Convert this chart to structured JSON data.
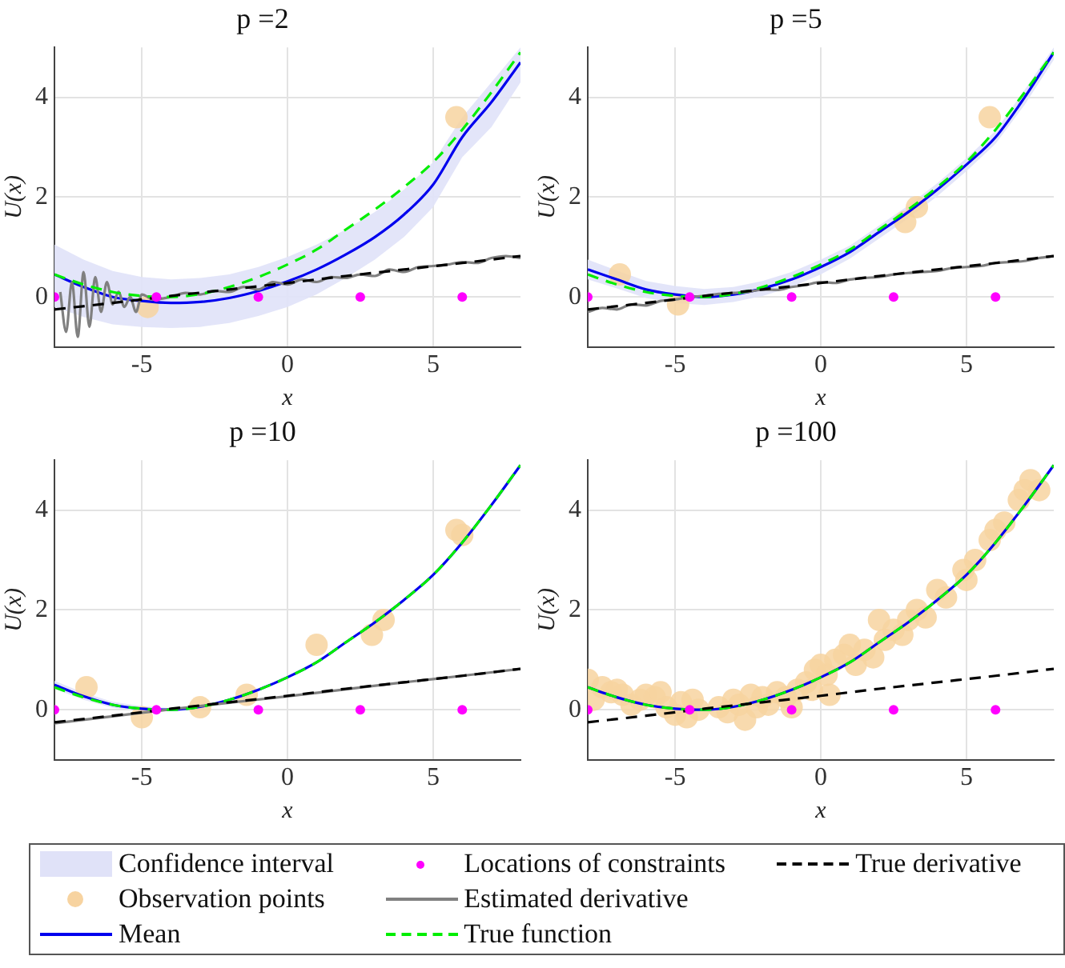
{
  "chart_data": [
    {
      "type": "line",
      "title": "p =2",
      "xlabel": "x",
      "ylabel": "U(x)",
      "xlim": [
        -8,
        8
      ],
      "xticks": [
        -5,
        0,
        5
      ],
      "ylim": [
        -1,
        5
      ],
      "yticks": [
        0,
        2,
        4
      ],
      "grid": true,
      "legend": "bottom",
      "series": [
        {
          "name": "Confidence interval",
          "type": "area",
          "color": "#e0e2f8",
          "x": [
            -8,
            -7,
            -6,
            -5,
            -4,
            -3,
            -2,
            -1,
            0,
            1,
            2,
            3,
            4,
            5,
            6,
            7,
            8
          ],
          "values": [
            null,
            null,
            null,
            null,
            null,
            null,
            null,
            null,
            null,
            null,
            null,
            null,
            null,
            null,
            null,
            null,
            null
          ],
          "lower": [
            -0.2,
            -0.4,
            -0.55,
            -0.6,
            -0.62,
            -0.6,
            -0.52,
            -0.38,
            -0.2,
            0.05,
            0.38,
            0.75,
            1.2,
            1.8,
            2.8,
            3.4,
            4.3
          ],
          "upper": [
            1.05,
            0.75,
            0.52,
            0.4,
            0.35,
            0.38,
            0.45,
            0.6,
            0.8,
            1.05,
            1.35,
            1.7,
            2.15,
            2.7,
            3.6,
            4.3,
            5.0
          ]
        },
        {
          "name": "Observation points",
          "type": "scatter",
          "marker": "circle",
          "color": "#f7d3a0",
          "x": [
            -4.8,
            5.8
          ],
          "values": [
            -0.2,
            3.6
          ]
        },
        {
          "name": "Mean",
          "type": "line",
          "color": "#0000ee",
          "x": [
            -8,
            -7,
            -6,
            -5,
            -4,
            -3,
            -2,
            -1,
            0,
            1,
            2,
            3,
            4,
            5,
            6,
            7,
            8
          ],
          "values": [
            0.45,
            0.2,
            0.0,
            -0.08,
            -0.12,
            -0.1,
            -0.02,
            0.12,
            0.31,
            0.55,
            0.85,
            1.2,
            1.65,
            2.25,
            3.2,
            3.9,
            4.7
          ]
        },
        {
          "name": "Locations of constraints",
          "type": "scatter",
          "marker": "circle",
          "color": "#ff00ff",
          "x": [
            -8,
            -4.5,
            -1,
            2.5,
            6
          ],
          "values": [
            0,
            0,
            0,
            0,
            0
          ]
        },
        {
          "name": "Estimated derivative",
          "type": "line",
          "color": "#808080",
          "x": [
            -7.8,
            -7.6,
            -7.4,
            -7.2,
            -7.0,
            -6.8,
            -6.6,
            -6.4,
            -6.2,
            -6.0,
            -5.8,
            -5.6,
            -5.4,
            -5.2,
            -5.0,
            -4.6,
            -4,
            -3.5,
            -3,
            -2.5,
            -2,
            -1.5,
            -1,
            -0.5,
            0,
            0.5,
            1,
            1.5,
            2,
            2.5,
            3,
            3.5,
            4,
            4.5,
            5,
            5.5,
            6,
            6.5,
            7,
            7.5,
            8
          ],
          "values": [
            0.1,
            -0.7,
            0.3,
            -0.8,
            0.5,
            -0.6,
            0.4,
            -0.3,
            0.3,
            -0.15,
            0.1,
            -0.2,
            0.0,
            -0.3,
            0.05,
            -0.05,
            0.0,
            0.08,
            0.05,
            0.12,
            0.1,
            0.2,
            0.15,
            0.3,
            0.25,
            0.35,
            0.3,
            0.4,
            0.38,
            0.45,
            0.42,
            0.55,
            0.5,
            0.6,
            0.62,
            0.65,
            0.7,
            0.68,
            0.78,
            0.82,
            0.78
          ]
        },
        {
          "name": "True function",
          "type": "line",
          "line_style": "dashed",
          "color": "#00ee00",
          "x": [
            -8,
            -7,
            -6,
            -5,
            -4,
            -3,
            -2,
            -1,
            0,
            1,
            2,
            3,
            4,
            5,
            6,
            7,
            8
          ],
          "values": [
            0.45,
            0.25,
            0.1,
            0.02,
            0.0,
            0.06,
            0.2,
            0.4,
            0.65,
            0.95,
            1.35,
            1.75,
            2.2,
            2.7,
            3.35,
            4.1,
            4.9
          ]
        },
        {
          "name": "True derivative",
          "type": "line",
          "line_style": "dashed",
          "color": "#000000",
          "x": [
            -8,
            -6,
            -4,
            -2,
            0,
            2,
            4,
            6,
            8
          ],
          "values": [
            -0.25,
            -0.12,
            0.02,
            0.15,
            0.28,
            0.42,
            0.55,
            0.68,
            0.82
          ]
        }
      ]
    },
    {
      "type": "line",
      "title": "p =5",
      "xlabel": "x",
      "ylabel": "U(x)",
      "xlim": [
        -8,
        8
      ],
      "xticks": [
        -5,
        0,
        5
      ],
      "ylim": [
        -1,
        5
      ],
      "yticks": [
        0,
        2,
        4
      ],
      "grid": true,
      "legend": "bottom",
      "series": [
        {
          "type": "area",
          "color": "#e0e2f8",
          "x": [
            -8,
            -7,
            -6,
            -5,
            -4,
            -3,
            -2,
            -1,
            0,
            1,
            2,
            3,
            4,
            5,
            6,
            7,
            8
          ],
          "values": [
            null,
            null,
            null,
            null,
            null,
            null,
            null,
            null,
            null,
            null,
            null,
            null,
            null,
            null,
            null,
            null,
            null
          ],
          "lower": [
            0.35,
            0.17,
            -0.02,
            -0.12,
            -0.16,
            -0.1,
            0.02,
            0.2,
            0.45,
            0.77,
            1.17,
            1.57,
            2.02,
            2.52,
            3.07,
            3.85,
            4.75
          ],
          "upper": [
            0.75,
            0.53,
            0.32,
            0.22,
            0.16,
            0.2,
            0.32,
            0.5,
            0.75,
            1.03,
            1.43,
            1.83,
            2.28,
            2.78,
            3.33,
            4.15,
            5.0
          ]
        },
        {
          "type": "scatter",
          "marker": "circle",
          "color": "#f7d3a0",
          "x": [
            -6.9,
            -4.9,
            2.9,
            3.3,
            5.8
          ],
          "values": [
            0.45,
            -0.15,
            1.5,
            1.8,
            3.6
          ]
        },
        {
          "type": "line",
          "color": "#0000ee",
          "x": [
            -8,
            -7,
            -6,
            -5,
            -4,
            -3,
            -2,
            -1,
            0,
            1,
            2,
            3,
            4,
            5,
            6,
            7,
            8
          ],
          "values": [
            0.55,
            0.35,
            0.15,
            0.05,
            0.0,
            0.05,
            0.17,
            0.35,
            0.6,
            0.9,
            1.3,
            1.7,
            2.15,
            2.65,
            3.2,
            4.0,
            4.9
          ]
        },
        {
          "type": "scatter",
          "marker": "circle",
          "color": "#ff00ff",
          "x": [
            -8,
            -4.5,
            -1,
            2.5,
            6
          ],
          "values": [
            0,
            0,
            0,
            0,
            0
          ]
        },
        {
          "type": "line",
          "color": "#808080",
          "x": [
            -8,
            -7.5,
            -7,
            -6.5,
            -6,
            -5.5,
            -5,
            -4.5,
            -4,
            -3.5,
            -3,
            -2.5,
            -2,
            -1.5,
            -1,
            -0.5,
            0,
            0.5,
            1,
            1.5,
            2,
            2.5,
            3,
            3.5,
            4,
            4.5,
            5,
            5.5,
            6,
            6.5,
            7,
            7.5,
            8
          ],
          "values": [
            -0.3,
            -0.22,
            -0.25,
            -0.15,
            -0.17,
            -0.08,
            -0.05,
            0.0,
            0.02,
            0.06,
            0.08,
            0.1,
            0.15,
            0.14,
            0.2,
            0.24,
            0.3,
            0.28,
            0.35,
            0.38,
            0.4,
            0.45,
            0.48,
            0.5,
            0.52,
            0.58,
            0.6,
            0.62,
            0.68,
            0.7,
            0.72,
            0.78,
            0.82
          ]
        },
        {
          "type": "line",
          "line_style": "dashed",
          "color": "#00ee00",
          "x": [
            -8,
            -7,
            -6,
            -5,
            -4,
            -3,
            -2,
            -1,
            0,
            1,
            2,
            3,
            4,
            5,
            6,
            7,
            8
          ],
          "values": [
            0.45,
            0.25,
            0.1,
            0.02,
            0.0,
            0.06,
            0.2,
            0.4,
            0.65,
            0.95,
            1.35,
            1.75,
            2.2,
            2.7,
            3.35,
            4.1,
            4.9
          ]
        },
        {
          "type": "line",
          "line_style": "dashed",
          "color": "#000000",
          "x": [
            -8,
            -6,
            -4,
            -2,
            0,
            2,
            4,
            6,
            8
          ],
          "values": [
            -0.25,
            -0.12,
            0.02,
            0.15,
            0.28,
            0.42,
            0.55,
            0.68,
            0.82
          ]
        }
      ]
    },
    {
      "type": "line",
      "title": "p =10",
      "xlabel": "x",
      "ylabel": "U(x)",
      "xlim": [
        -8,
        8
      ],
      "xticks": [
        -5,
        0,
        5
      ],
      "ylim": [
        -1,
        5
      ],
      "yticks": [
        0,
        2,
        4
      ],
      "grid": true,
      "legend": "bottom",
      "series": [
        {
          "type": "area",
          "color": "#e0e2f8",
          "x": [
            -8,
            -7,
            -6,
            -5,
            -4,
            -3,
            -2,
            -1,
            0,
            1,
            2,
            3,
            4,
            5,
            6,
            7,
            8
          ],
          "values": [
            null,
            null,
            null,
            null,
            null,
            null,
            null,
            null,
            null,
            null,
            null,
            null,
            null,
            null,
            null,
            null,
            null
          ],
          "lower": [
            0.42,
            0.2,
            0.04,
            -0.03,
            -0.03,
            0.03,
            0.18,
            0.38,
            0.63,
            0.93,
            1.33,
            1.73,
            2.18,
            2.68,
            3.33,
            4.08,
            4.88
          ],
          "upper": [
            0.58,
            0.34,
            0.16,
            0.07,
            0.03,
            0.09,
            0.22,
            0.42,
            0.67,
            0.97,
            1.37,
            1.77,
            2.22,
            2.72,
            3.37,
            4.12,
            4.92
          ]
        },
        {
          "type": "scatter",
          "marker": "circle",
          "color": "#f7d3a0",
          "x": [
            -6.9,
            -5,
            -3,
            -1.4,
            1,
            2.9,
            3.3,
            5.8,
            6
          ],
          "values": [
            0.45,
            -0.15,
            0.05,
            0.3,
            1.3,
            1.5,
            1.8,
            3.6,
            3.5
          ]
        },
        {
          "type": "line",
          "color": "#0000ee",
          "x": [
            -8,
            -7,
            -6,
            -5,
            -4,
            -3,
            -2,
            -1,
            0,
            1,
            2,
            3,
            4,
            5,
            6,
            7,
            8
          ],
          "values": [
            0.5,
            0.27,
            0.1,
            0.02,
            0.0,
            0.06,
            0.2,
            0.4,
            0.65,
            0.95,
            1.35,
            1.75,
            2.2,
            2.7,
            3.35,
            4.1,
            4.9
          ]
        },
        {
          "type": "scatter",
          "marker": "circle",
          "color": "#ff00ff",
          "x": [
            -8,
            -4.5,
            -1,
            2.5,
            6
          ],
          "values": [
            0,
            0,
            0,
            0,
            0
          ]
        },
        {
          "type": "line",
          "color": "#808080",
          "x": [
            -8,
            -6,
            -4,
            -2,
            0,
            2,
            4,
            6,
            8
          ],
          "values": [
            -0.27,
            -0.13,
            0.01,
            0.14,
            0.27,
            0.41,
            0.55,
            0.68,
            0.82
          ]
        },
        {
          "type": "line",
          "line_style": "dashed",
          "color": "#00ee00",
          "x": [
            -8,
            -7,
            -6,
            -5,
            -4,
            -3,
            -2,
            -1,
            0,
            1,
            2,
            3,
            4,
            5,
            6,
            7,
            8
          ],
          "values": [
            0.45,
            0.25,
            0.1,
            0.02,
            0.0,
            0.06,
            0.2,
            0.4,
            0.65,
            0.95,
            1.35,
            1.75,
            2.2,
            2.7,
            3.35,
            4.1,
            4.9
          ]
        },
        {
          "type": "line",
          "line_style": "dashed",
          "color": "#000000",
          "x": [
            -8,
            -6,
            -4,
            -2,
            0,
            2,
            4,
            6,
            8
          ],
          "values": [
            -0.25,
            -0.12,
            0.02,
            0.15,
            0.28,
            0.42,
            0.55,
            0.68,
            0.82
          ]
        }
      ]
    },
    {
      "type": "line",
      "title": "p =100",
      "xlabel": "x",
      "ylabel": "U(x)",
      "xlim": [
        -8,
        8
      ],
      "xticks": [
        -5,
        0,
        5
      ],
      "ylim": [
        -1,
        5
      ],
      "yticks": [
        0,
        2,
        4
      ],
      "grid": true,
      "legend": "bottom",
      "series": [
        {
          "type": "scatter",
          "marker": "circle",
          "color": "#f7d3a0",
          "x": [
            -8,
            -7.8,
            -7.5,
            -7.2,
            -7,
            -6.8,
            -6.5,
            -6.2,
            -6,
            -5.7,
            -5.5,
            -5.3,
            -5,
            -4.8,
            -4.6,
            -4.4,
            -4.2,
            -3.5,
            -3.2,
            -3,
            -2.8,
            -2.6,
            -2.4,
            -2.2,
            -2,
            -1.8,
            -1.5,
            -1.2,
            -1,
            -0.8,
            -0.5,
            -0.3,
            -0.2,
            0,
            0.2,
            0.3,
            0.5,
            0.8,
            1,
            1.2,
            1.5,
            1.8,
            2,
            2.2,
            2.5,
            2.8,
            3,
            3.3,
            3.6,
            4,
            4.3,
            4.9,
            5,
            5.3,
            5.8,
            6,
            6.3,
            6.8,
            7,
            7.2,
            7.5
          ],
          "values": [
            0.6,
            0.2,
            0.45,
            0.35,
            0.4,
            0.3,
            0.1,
            0.2,
            0.3,
            0.25,
            0.35,
            0.05,
            -0.1,
            0.15,
            -0.15,
            0.2,
            0.0,
            0.05,
            -0.05,
            0.2,
            0.1,
            -0.2,
            0.3,
            0.05,
            0.25,
            0.1,
            0.35,
            0.25,
            0.05,
            0.4,
            0.55,
            0.4,
            0.8,
            0.9,
            0.7,
            0.3,
            1.0,
            1.1,
            1.3,
            0.9,
            1.2,
            1.05,
            1.8,
            1.4,
            1.6,
            1.5,
            1.8,
            2.0,
            1.85,
            2.4,
            2.25,
            2.8,
            2.6,
            3.0,
            3.4,
            3.6,
            3.75,
            4.2,
            4.4,
            4.6,
            4.4
          ]
        },
        {
          "type": "line",
          "color": "#0000ee",
          "x": [
            -8,
            -7,
            -6,
            -5,
            -4,
            -3,
            -2,
            -1,
            0,
            1,
            2,
            3,
            4,
            5,
            6,
            7,
            8
          ],
          "values": [
            0.45,
            0.25,
            0.1,
            0.02,
            0.0,
            0.06,
            0.2,
            0.4,
            0.65,
            0.95,
            1.35,
            1.75,
            2.2,
            2.7,
            3.35,
            4.1,
            4.9
          ]
        },
        {
          "type": "scatter",
          "marker": "circle",
          "color": "#ff00ff",
          "x": [
            -8,
            -4.5,
            -1,
            2.5,
            6
          ],
          "values": [
            0,
            0,
            0,
            0,
            0
          ]
        },
        {
          "type": "line",
          "line_style": "dashed",
          "color": "#00ee00",
          "x": [
            -8,
            -7,
            -6,
            -5,
            -4,
            -3,
            -2,
            -1,
            0,
            1,
            2,
            3,
            4,
            5,
            6,
            7,
            8
          ],
          "values": [
            0.45,
            0.25,
            0.1,
            0.02,
            0.0,
            0.06,
            0.2,
            0.4,
            0.65,
            0.95,
            1.35,
            1.75,
            2.2,
            2.7,
            3.35,
            4.1,
            4.9
          ]
        },
        {
          "type": "line",
          "line_style": "dashed",
          "color": "#000000",
          "x": [
            -8,
            -6,
            -4,
            -2,
            0,
            2,
            4,
            6,
            8
          ],
          "values": [
            -0.25,
            -0.12,
            0.02,
            0.15,
            0.28,
            0.42,
            0.55,
            0.68,
            0.82
          ]
        }
      ]
    }
  ]
}
